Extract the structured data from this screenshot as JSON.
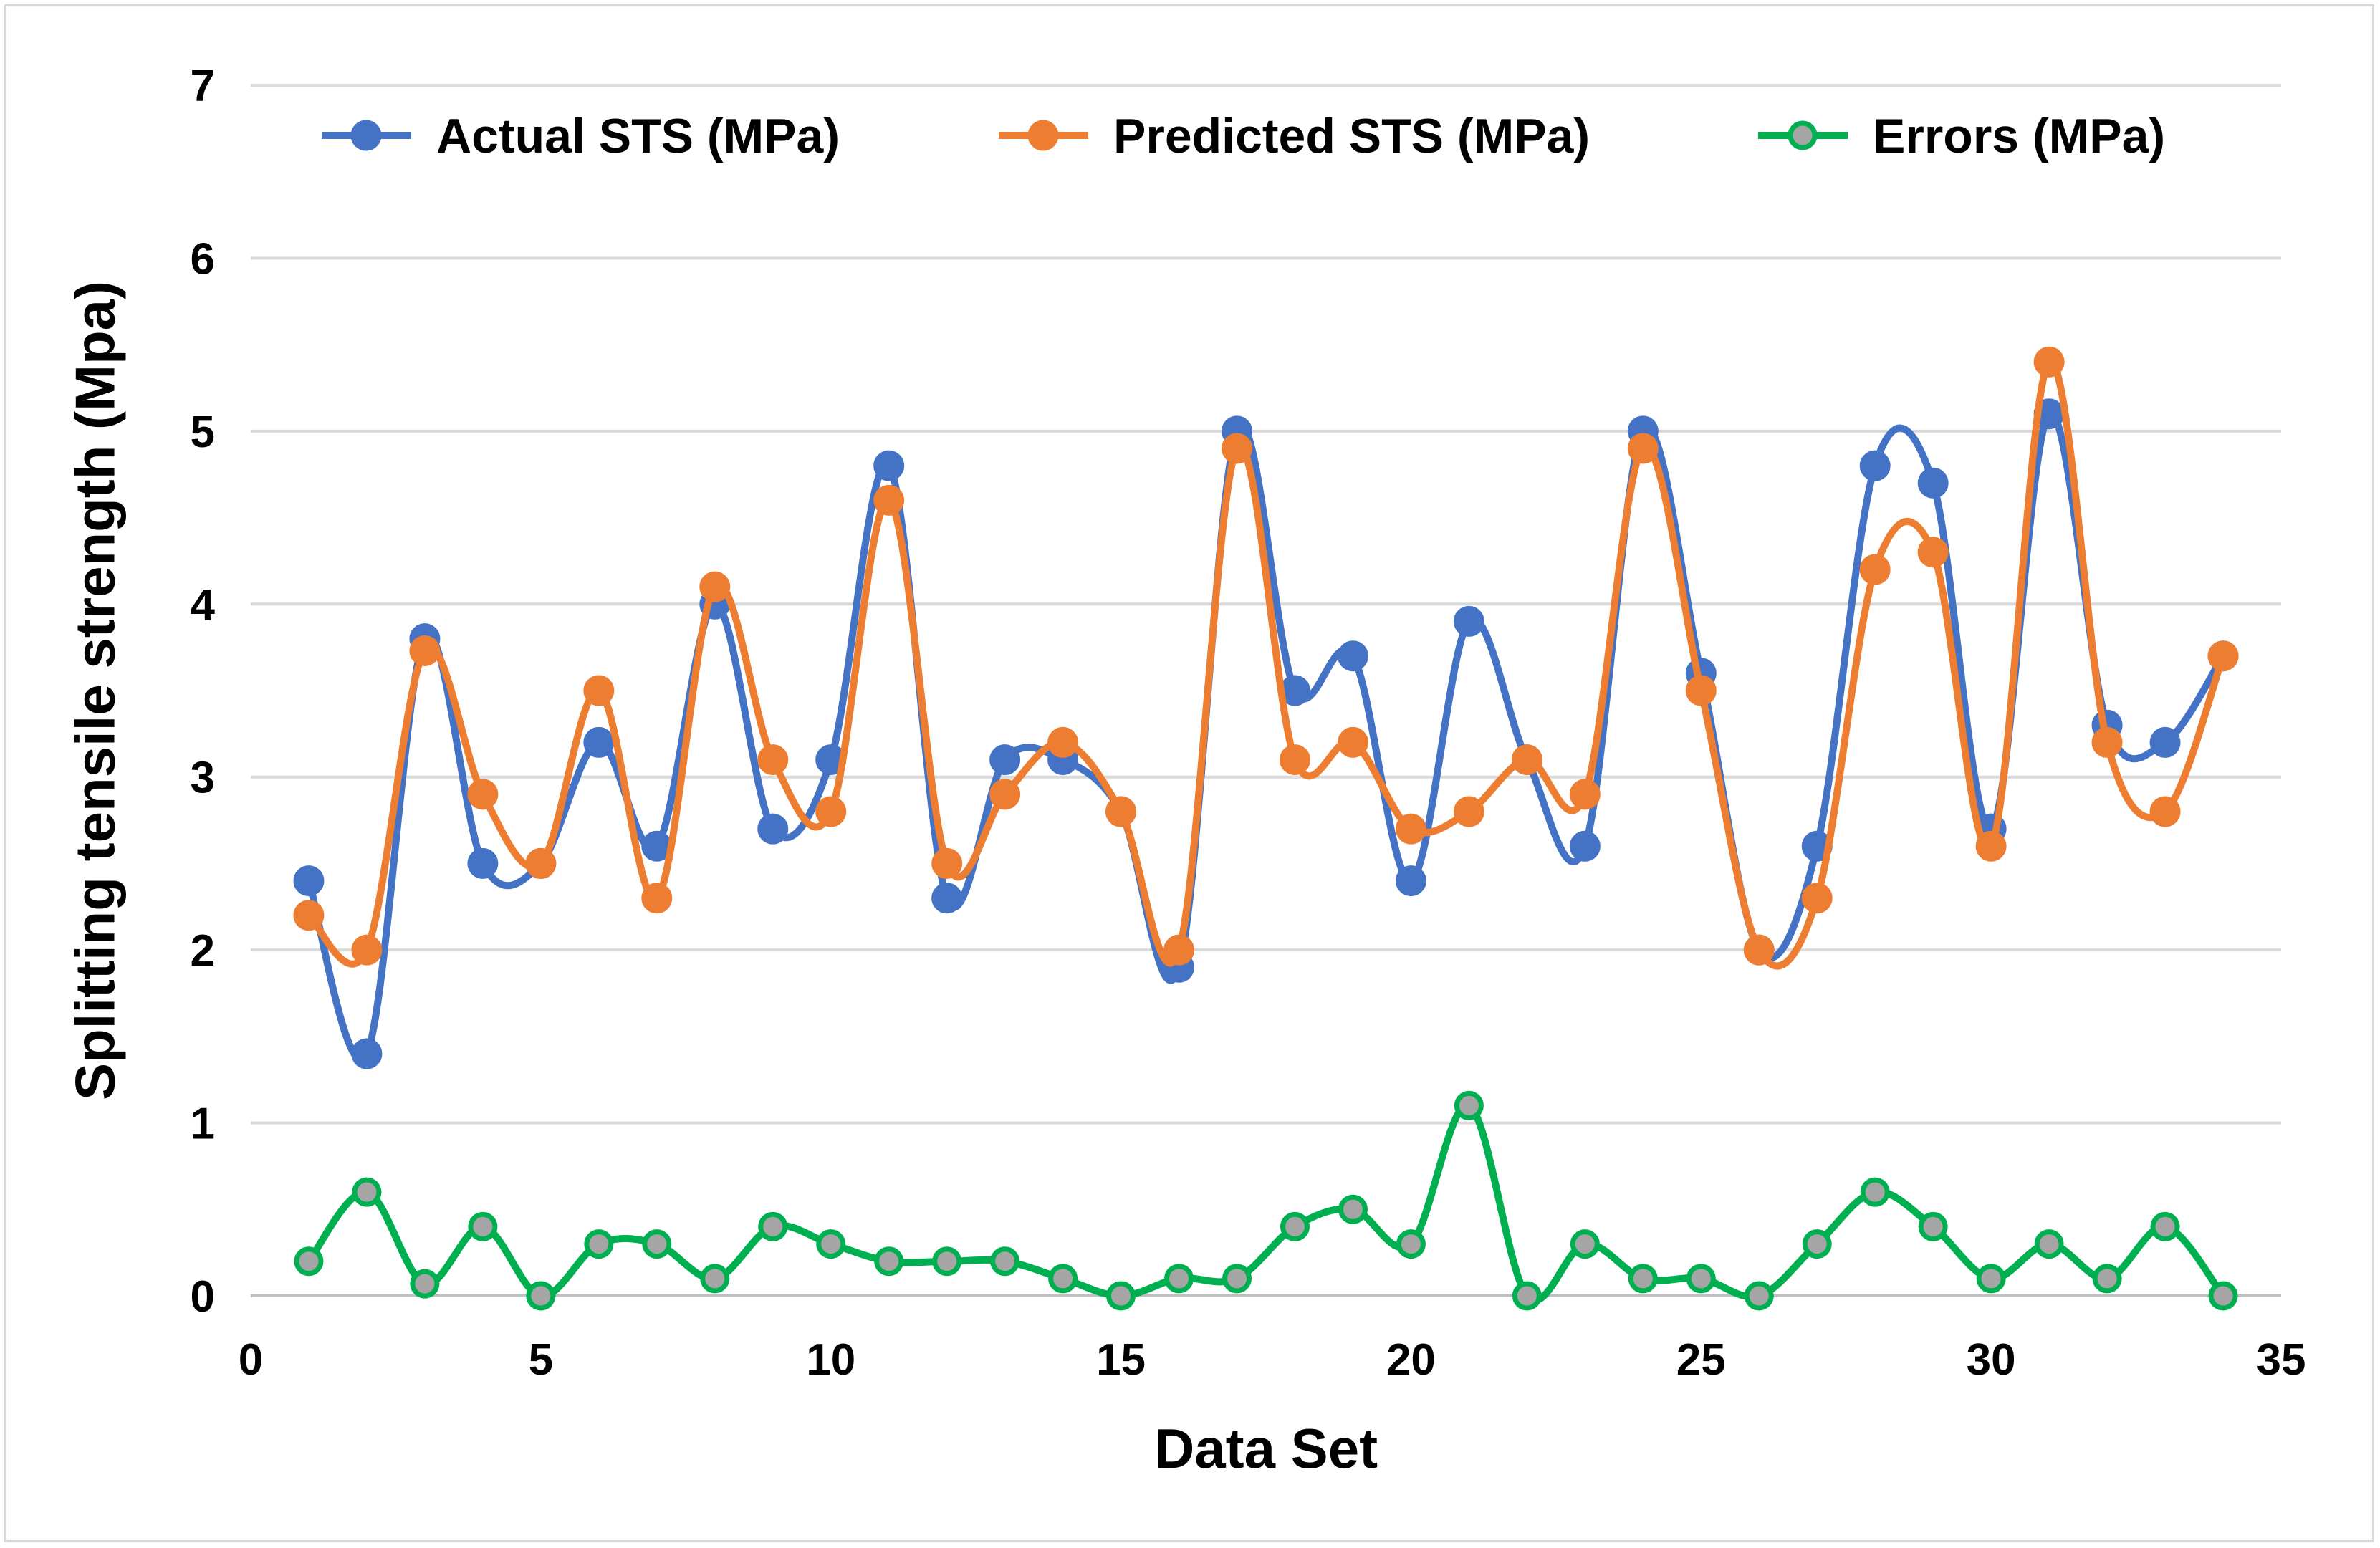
{
  "chart_data": {
    "type": "line",
    "title": "",
    "xlabel": "Data Set",
    "ylabel": "Splitting tensile strength (Mpa)",
    "xlim": [
      0,
      35
    ],
    "ylim": [
      0,
      7
    ],
    "xticks": [
      0,
      5,
      10,
      15,
      20,
      25,
      30,
      35
    ],
    "yticks": [
      0,
      1,
      2,
      3,
      4,
      5,
      6,
      7
    ],
    "grid": "horizontal",
    "legend_position": "top",
    "smooth": true,
    "x": [
      1,
      2,
      3,
      4,
      5,
      6,
      7,
      8,
      9,
      10,
      11,
      12,
      13,
      14,
      15,
      16,
      17,
      18,
      19,
      20,
      21,
      22,
      23,
      24,
      25,
      26,
      27,
      28,
      29,
      30,
      31,
      32,
      33,
      34
    ],
    "series": [
      {
        "name": "Actual STS (MPa)",
        "color": "#4472c4",
        "marker_fill": "#4472c4",
        "values": [
          2.4,
          1.4,
          3.8,
          2.5,
          2.5,
          3.2,
          2.6,
          4.0,
          2.7,
          3.1,
          4.8,
          2.3,
          3.1,
          3.1,
          2.8,
          1.9,
          5.0,
          3.5,
          3.7,
          2.4,
          3.9,
          3.1,
          2.6,
          5.0,
          3.6,
          2.0,
          2.6,
          4.8,
          4.7,
          2.7,
          5.1,
          3.3,
          3.2,
          3.7
        ]
      },
      {
        "name": "Predicted STS (MPa)",
        "color": "#ed7d31",
        "marker_fill": "#ed7d31",
        "values": [
          2.2,
          2.0,
          3.73,
          2.9,
          2.5,
          3.5,
          2.3,
          4.1,
          3.1,
          2.8,
          4.6,
          2.5,
          2.9,
          3.2,
          2.8,
          2.0,
          4.9,
          3.1,
          3.2,
          2.7,
          2.8,
          3.1,
          2.9,
          4.9,
          3.5,
          2.0,
          2.3,
          4.2,
          4.3,
          2.6,
          5.4,
          3.2,
          2.8,
          3.7
        ]
      },
      {
        "name": "Errors (MPa)",
        "color": "#00b050",
        "marker_fill": "#a5a5a5",
        "values": [
          0.2,
          0.6,
          0.07,
          0.4,
          0.0,
          0.3,
          0.3,
          0.1,
          0.4,
          0.3,
          0.2,
          0.2,
          0.2,
          0.1,
          0.0,
          0.1,
          0.1,
          0.4,
          0.5,
          0.3,
          1.1,
          0.0,
          0.3,
          0.1,
          0.1,
          0.0,
          0.3,
          0.6,
          0.4,
          0.1,
          0.3,
          0.1,
          0.4,
          0.0
        ]
      }
    ]
  }
}
